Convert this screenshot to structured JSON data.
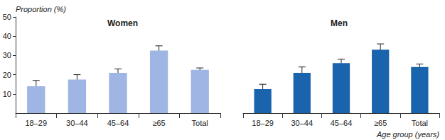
{
  "chart_data": [
    {
      "type": "bar",
      "title": "Women",
      "y_label": "Proportion (%)",
      "categories": [
        "18–29",
        "30–44",
        "45–64",
        "≥65",
        "Total"
      ],
      "values": [
        14,
        17.5,
        21,
        32.5,
        22.5
      ],
      "errors": [
        [
          11.5,
          17
        ],
        [
          15.5,
          20
        ],
        [
          19.5,
          23
        ],
        [
          30.5,
          35
        ],
        [
          21.5,
          23.5
        ]
      ],
      "color": "#9fb5e3",
      "ylim": [
        0,
        50
      ],
      "yticks": [
        10,
        20,
        30,
        40,
        50
      ],
      "grid": false
    },
    {
      "type": "bar",
      "title": "Men",
      "x_label": "Age group (years)",
      "categories": [
        "18–29",
        "30–44",
        "45–64",
        "≥65",
        "Total"
      ],
      "values": [
        12.5,
        21,
        26,
        33,
        24
      ],
      "errors": [
        [
          10.5,
          15
        ],
        [
          18.5,
          24
        ],
        [
          24,
          28
        ],
        [
          31,
          36
        ],
        [
          23,
          25.5
        ]
      ],
      "color": "#1a63ad",
      "ylim": [
        0,
        50
      ],
      "yticks": [
        10,
        20,
        30,
        40,
        50
      ],
      "grid": false,
      "tick_labels": "x"
    }
  ]
}
